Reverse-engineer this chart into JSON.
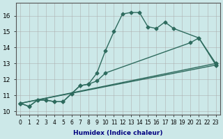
{
  "xlabel": "Humidex (Indice chaleur)",
  "ylabel": "",
  "background_color": "#cce8e8",
  "grid_color": "#aaaaaa",
  "line_color": "#2e6b5e",
  "xlim": [
    -0.5,
    23.5
  ],
  "ylim": [
    9.8,
    16.8
  ],
  "yticks": [
    10,
    11,
    12,
    13,
    14,
    15,
    16
  ],
  "xticks": [
    0,
    1,
    2,
    3,
    4,
    5,
    6,
    7,
    8,
    9,
    10,
    11,
    12,
    13,
    14,
    15,
    16,
    17,
    18,
    19,
    20,
    21,
    22,
    23
  ],
  "series": [
    {
      "x": [
        0,
        1,
        2,
        3,
        4,
        5,
        6,
        7,
        8,
        9,
        10,
        11,
        12,
        13,
        14,
        15,
        16,
        17,
        18,
        19,
        20,
        21,
        22,
        23
      ],
      "y": [
        10.5,
        10.3,
        10.7,
        10.7,
        10.6,
        10.6,
        11.1,
        11.6,
        11.7,
        12.4,
        13.8,
        15.0,
        16.1,
        16.2,
        16.2,
        15.3,
        15.2,
        15.6,
        15.2,
        null,
        null,
        14.6,
        null,
        13.0
      ]
    },
    {
      "x": [
        0,
        1,
        2,
        3,
        4,
        5,
        6,
        7,
        8,
        9,
        10,
        11,
        12,
        13,
        14,
        15,
        16,
        17,
        18,
        19,
        20,
        21,
        22,
        23
      ],
      "y": [
        10.5,
        10.3,
        10.7,
        10.7,
        10.6,
        10.6,
        11.1,
        11.6,
        11.7,
        11.9,
        12.4,
        null,
        null,
        null,
        null,
        null,
        null,
        null,
        null,
        null,
        14.3,
        14.6,
        null,
        12.9
      ]
    },
    {
      "x": [
        0,
        23
      ],
      "y": [
        10.5,
        12.9
      ]
    },
    {
      "x": [
        0,
        23
      ],
      "y": [
        10.5,
        13.0
      ]
    }
  ]
}
